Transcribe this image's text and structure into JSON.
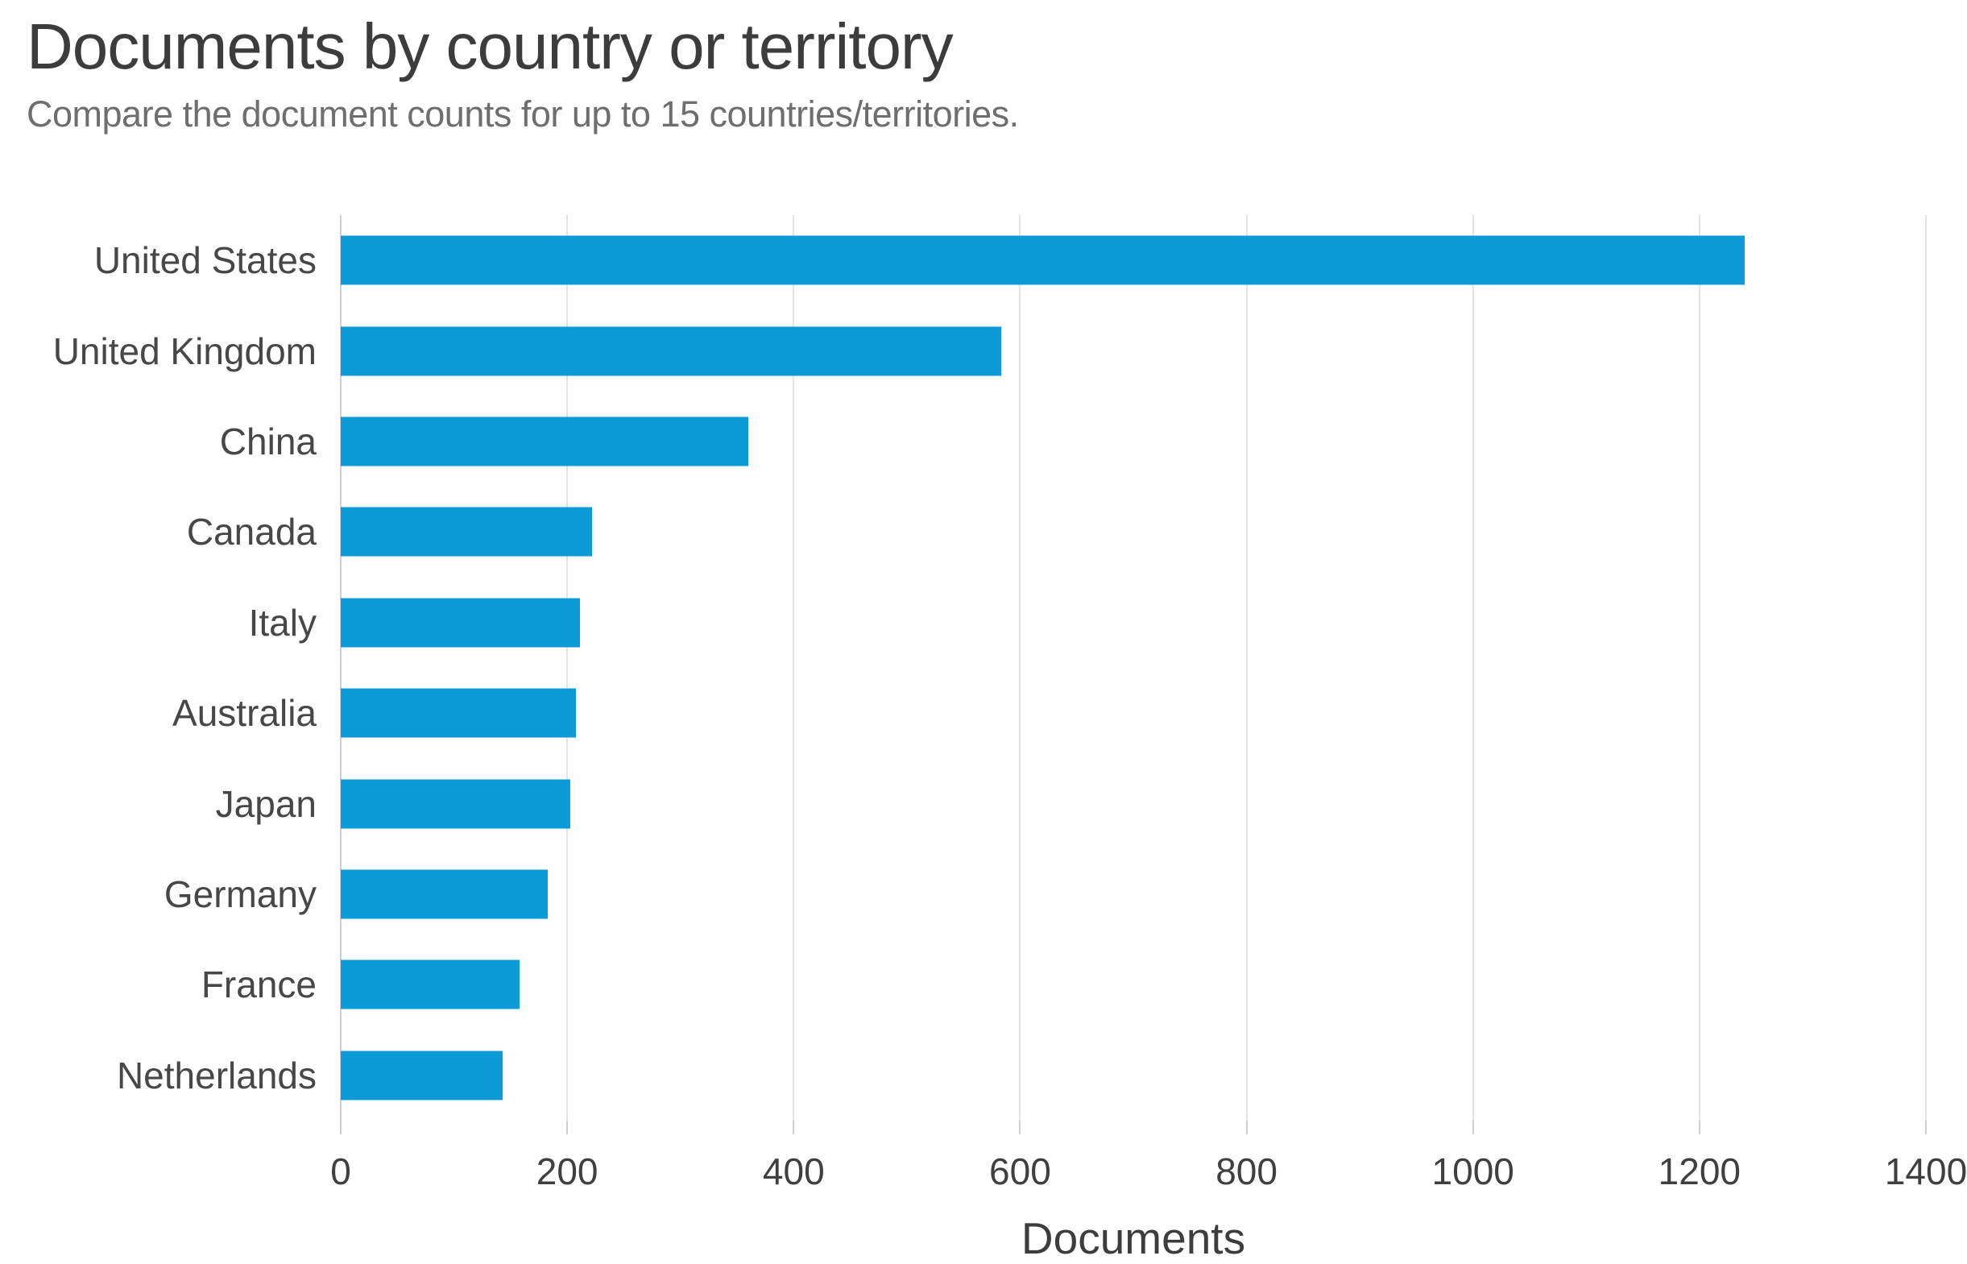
{
  "header": {
    "title": "Documents by country or territory",
    "subtitle": "Compare the document counts for up to 15 countries/territories."
  },
  "chart_data": {
    "type": "bar",
    "orientation": "horizontal",
    "title": "Documents by country or territory",
    "subtitle": "Compare the document counts for up to 15 countries/territories.",
    "categories": [
      "United States",
      "United Kingdom",
      "China",
      "Canada",
      "Italy",
      "Australia",
      "Japan",
      "Germany",
      "France",
      "Netherlands"
    ],
    "values": [
      1240,
      583,
      360,
      222,
      211,
      208,
      203,
      183,
      158,
      143
    ],
    "xlabel": "Documents",
    "ylabel": "",
    "xlim": [
      0,
      1400
    ],
    "xticks": [
      0,
      200,
      400,
      600,
      800,
      1000,
      1200,
      1400
    ],
    "grid": true,
    "legend": false
  },
  "colors": {
    "bar": "#0c9bd6",
    "gridline": "#e4e4e4",
    "zero_line": "#c6d0e2",
    "tick_mark": "#cfcfcf",
    "title_text": "#3c3c3c",
    "subtitle_text": "#6e6e6e",
    "label_text": "#474747"
  }
}
